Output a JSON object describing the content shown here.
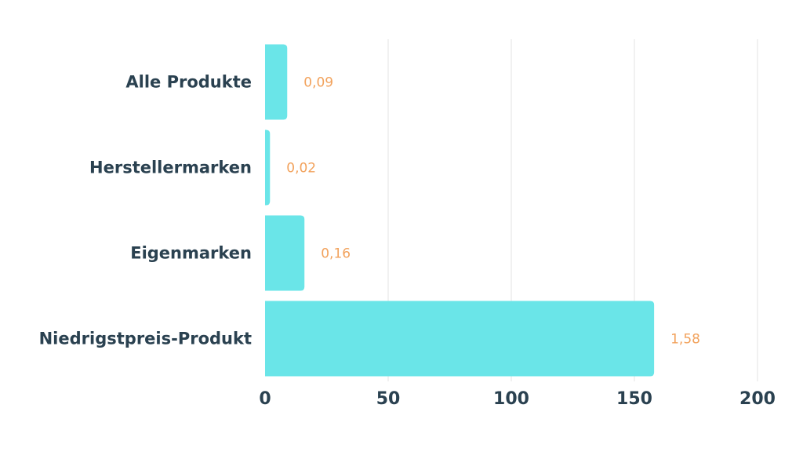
{
  "chart_data": {
    "type": "bar",
    "orientation": "horizontal",
    "categories": [
      "Alle Produkte",
      "Herstellermarken",
      "Eigenmarken",
      "Niedrigstpreis-Produkt"
    ],
    "values": [
      9,
      2,
      16,
      158
    ],
    "data_labels": [
      "0,09",
      "0,02",
      "0,16",
      "1,58"
    ],
    "xlim": [
      0,
      200
    ],
    "xticks": [
      0,
      50,
      100,
      150,
      200
    ],
    "xtick_labels": [
      "0",
      "50",
      "100",
      "150",
      "200"
    ],
    "title": "",
    "xlabel": "",
    "ylabel": "",
    "grid": true,
    "legend": "none",
    "colors": {
      "bar": "#6ae5e8",
      "data_label": "#f2a25c",
      "text": "#2a4150",
      "grid": "#e3e3e3"
    }
  }
}
